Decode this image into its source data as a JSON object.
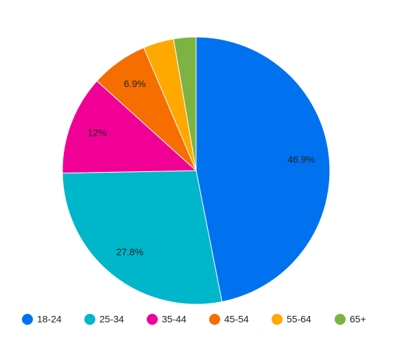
{
  "chart_data": {
    "type": "pie",
    "categories": [
      "18-24",
      "25-34",
      "35-44",
      "45-54",
      "55-64",
      "65+"
    ],
    "values": [
      46.9,
      27.8,
      12,
      6.9,
      3.7,
      2.7
    ],
    "value_labels": [
      "46.9%",
      "27.8%",
      "12%",
      "6.9%",
      null,
      null
    ],
    "colors": [
      "#0072f0",
      "#00b6cb",
      "#f10096",
      "#f66d00",
      "#ffa800",
      "#7cb342"
    ],
    "legend": "bottom"
  }
}
